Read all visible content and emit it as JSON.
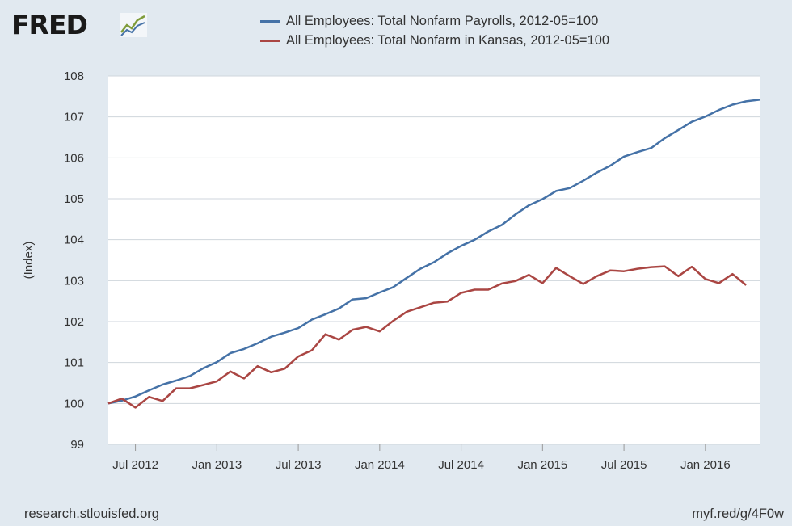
{
  "header": {
    "logo_text": "FRED",
    "logo_mark": "fred-graph-mark-icon"
  },
  "footer": {
    "source": "research.stlouisfed.org",
    "link": "myf.red/g/4F0w"
  },
  "colors": {
    "background": "#e1e9f0",
    "plot_bg": "#ffffff",
    "grid": "#cfd6dc",
    "series1": "#4572a7",
    "series2": "#aa4643"
  },
  "chart_data": {
    "type": "line",
    "title": "",
    "xlabel": "",
    "ylabel": "(Index)",
    "ylim": [
      99,
      108
    ],
    "yticks": [
      "99",
      "100",
      "101",
      "102",
      "103",
      "104",
      "105",
      "106",
      "107",
      "108"
    ],
    "xlim_months": [
      0,
      48
    ],
    "xticks": [
      {
        "label": "Jul 2012",
        "month": 2
      },
      {
        "label": "Jan 2013",
        "month": 8
      },
      {
        "label": "Jul 2013",
        "month": 14
      },
      {
        "label": "Jan 2014",
        "month": 20
      },
      {
        "label": "Jul 2014",
        "month": 26
      },
      {
        "label": "Jan 2015",
        "month": 32
      },
      {
        "label": "Jul 2015",
        "month": 38
      },
      {
        "label": "Jan 2016",
        "month": 44
      }
    ],
    "x_start": "2012-05",
    "series": [
      {
        "name": "All Employees: Total Nonfarm Payrolls, 2012-05=100",
        "values": [
          100.0,
          100.07,
          100.17,
          100.32,
          100.46,
          100.56,
          100.67,
          100.86,
          101.01,
          101.23,
          101.33,
          101.47,
          101.63,
          101.73,
          101.84,
          102.05,
          102.18,
          102.32,
          102.54,
          102.57,
          102.71,
          102.84,
          103.07,
          103.29,
          103.45,
          103.67,
          103.85,
          104.0,
          104.2,
          104.36,
          104.62,
          104.84,
          104.99,
          105.19,
          105.26,
          105.44,
          105.64,
          105.81,
          106.03,
          106.14,
          106.24,
          106.48,
          106.68,
          106.88,
          107.01,
          107.17,
          107.3,
          107.38,
          107.42
        ]
      },
      {
        "name": "All Employees: Total Nonfarm in Kansas, 2012-05=100",
        "values": [
          100.0,
          100.12,
          99.9,
          100.16,
          100.06,
          100.37,
          100.37,
          100.45,
          100.54,
          100.78,
          100.61,
          100.91,
          100.76,
          100.85,
          101.15,
          101.3,
          101.69,
          101.56,
          101.8,
          101.87,
          101.76,
          102.02,
          102.24,
          102.35,
          102.46,
          102.49,
          102.7,
          102.78,
          102.78,
          102.93,
          102.99,
          103.14,
          102.94,
          103.31,
          103.11,
          102.92,
          103.11,
          103.25,
          103.23,
          103.29,
          103.33,
          103.35,
          103.11,
          103.34,
          103.04,
          102.94,
          103.16,
          102.89
        ]
      }
    ]
  }
}
